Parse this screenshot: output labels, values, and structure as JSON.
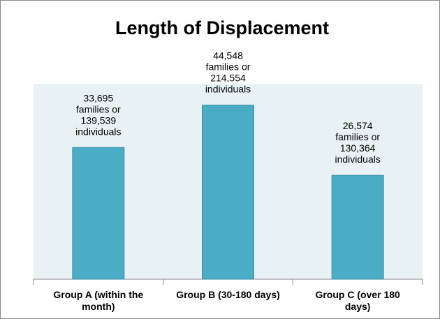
{
  "chart_data": {
    "type": "bar",
    "title": "Length of Displacement",
    "categories": [
      "Group A (within the month)",
      "Group B (30-180 days)",
      "Group C (over 180 days)"
    ],
    "values": [
      33695,
      44548,
      26574
    ],
    "value_labels": [
      "33,695\nfamilies or\n139,539\nindividuals",
      "44,548\nfamilies or\n214,554\nindividuals",
      "26,574\nfamilies or\n130,364\nindividuals"
    ],
    "color": "#4bacc6",
    "ylim": [
      0,
      50000
    ]
  }
}
